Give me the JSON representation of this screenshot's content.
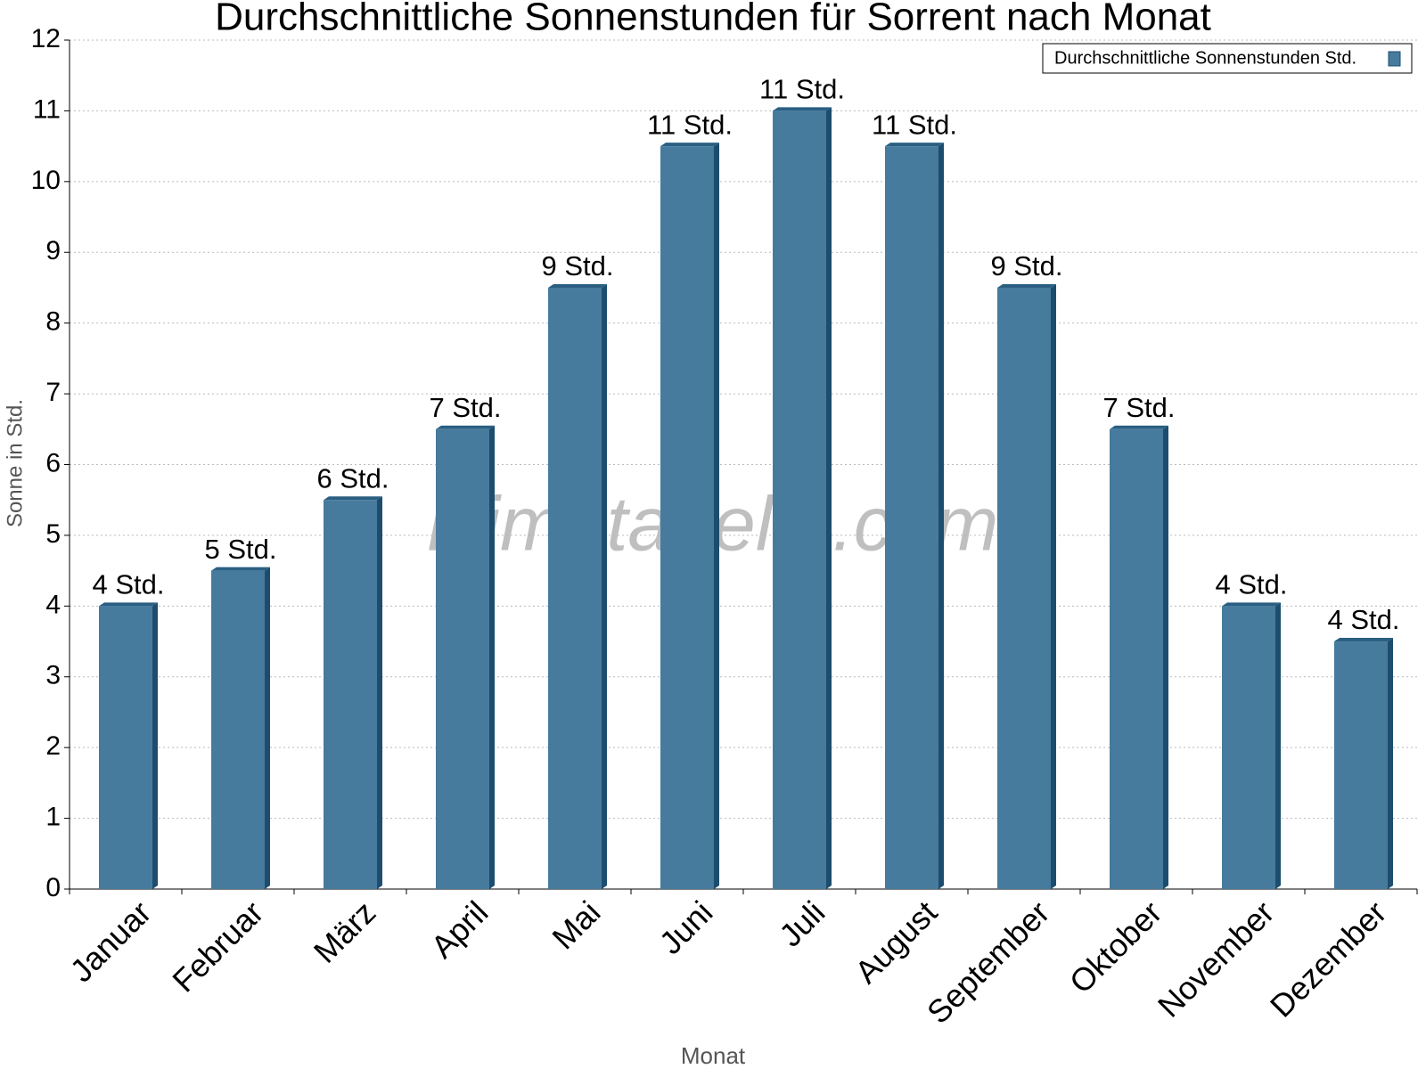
{
  "chart_data": {
    "type": "bar",
    "title": "Durchschnittliche Sonnenstunden für Sorrent nach Monat",
    "x_label": "Monat",
    "y_label": "Sonne in Std.",
    "watermark": "klimatabelle.com",
    "categories": [
      "Januar",
      "Februar",
      "März",
      "April",
      "Mai",
      "Juni",
      "Juli",
      "August",
      "September",
      "Oktober",
      "November",
      "Dezember"
    ],
    "series": [
      {
        "name": "Durchschnittliche Sonnenstunden Std.",
        "color": "#467b9e",
        "values": [
          4,
          4.5,
          5.5,
          6.5,
          8.5,
          10.5,
          11,
          10.5,
          8.5,
          6.5,
          4,
          3.5
        ],
        "value_labels": [
          "4 Std.",
          "5 Std.",
          "6 Std.",
          "7 Std.",
          "9 Std.",
          "11 Std.",
          "11 Std.",
          "11 Std.",
          "9 Std.",
          "7 Std.",
          "4 Std.",
          "4 Std."
        ]
      }
    ],
    "ylim": [
      0,
      12
    ],
    "yticks": [
      0,
      1,
      2,
      3,
      4,
      5,
      6,
      7,
      8,
      9,
      10,
      11,
      12
    ],
    "grid": true,
    "legend": "upper right"
  }
}
